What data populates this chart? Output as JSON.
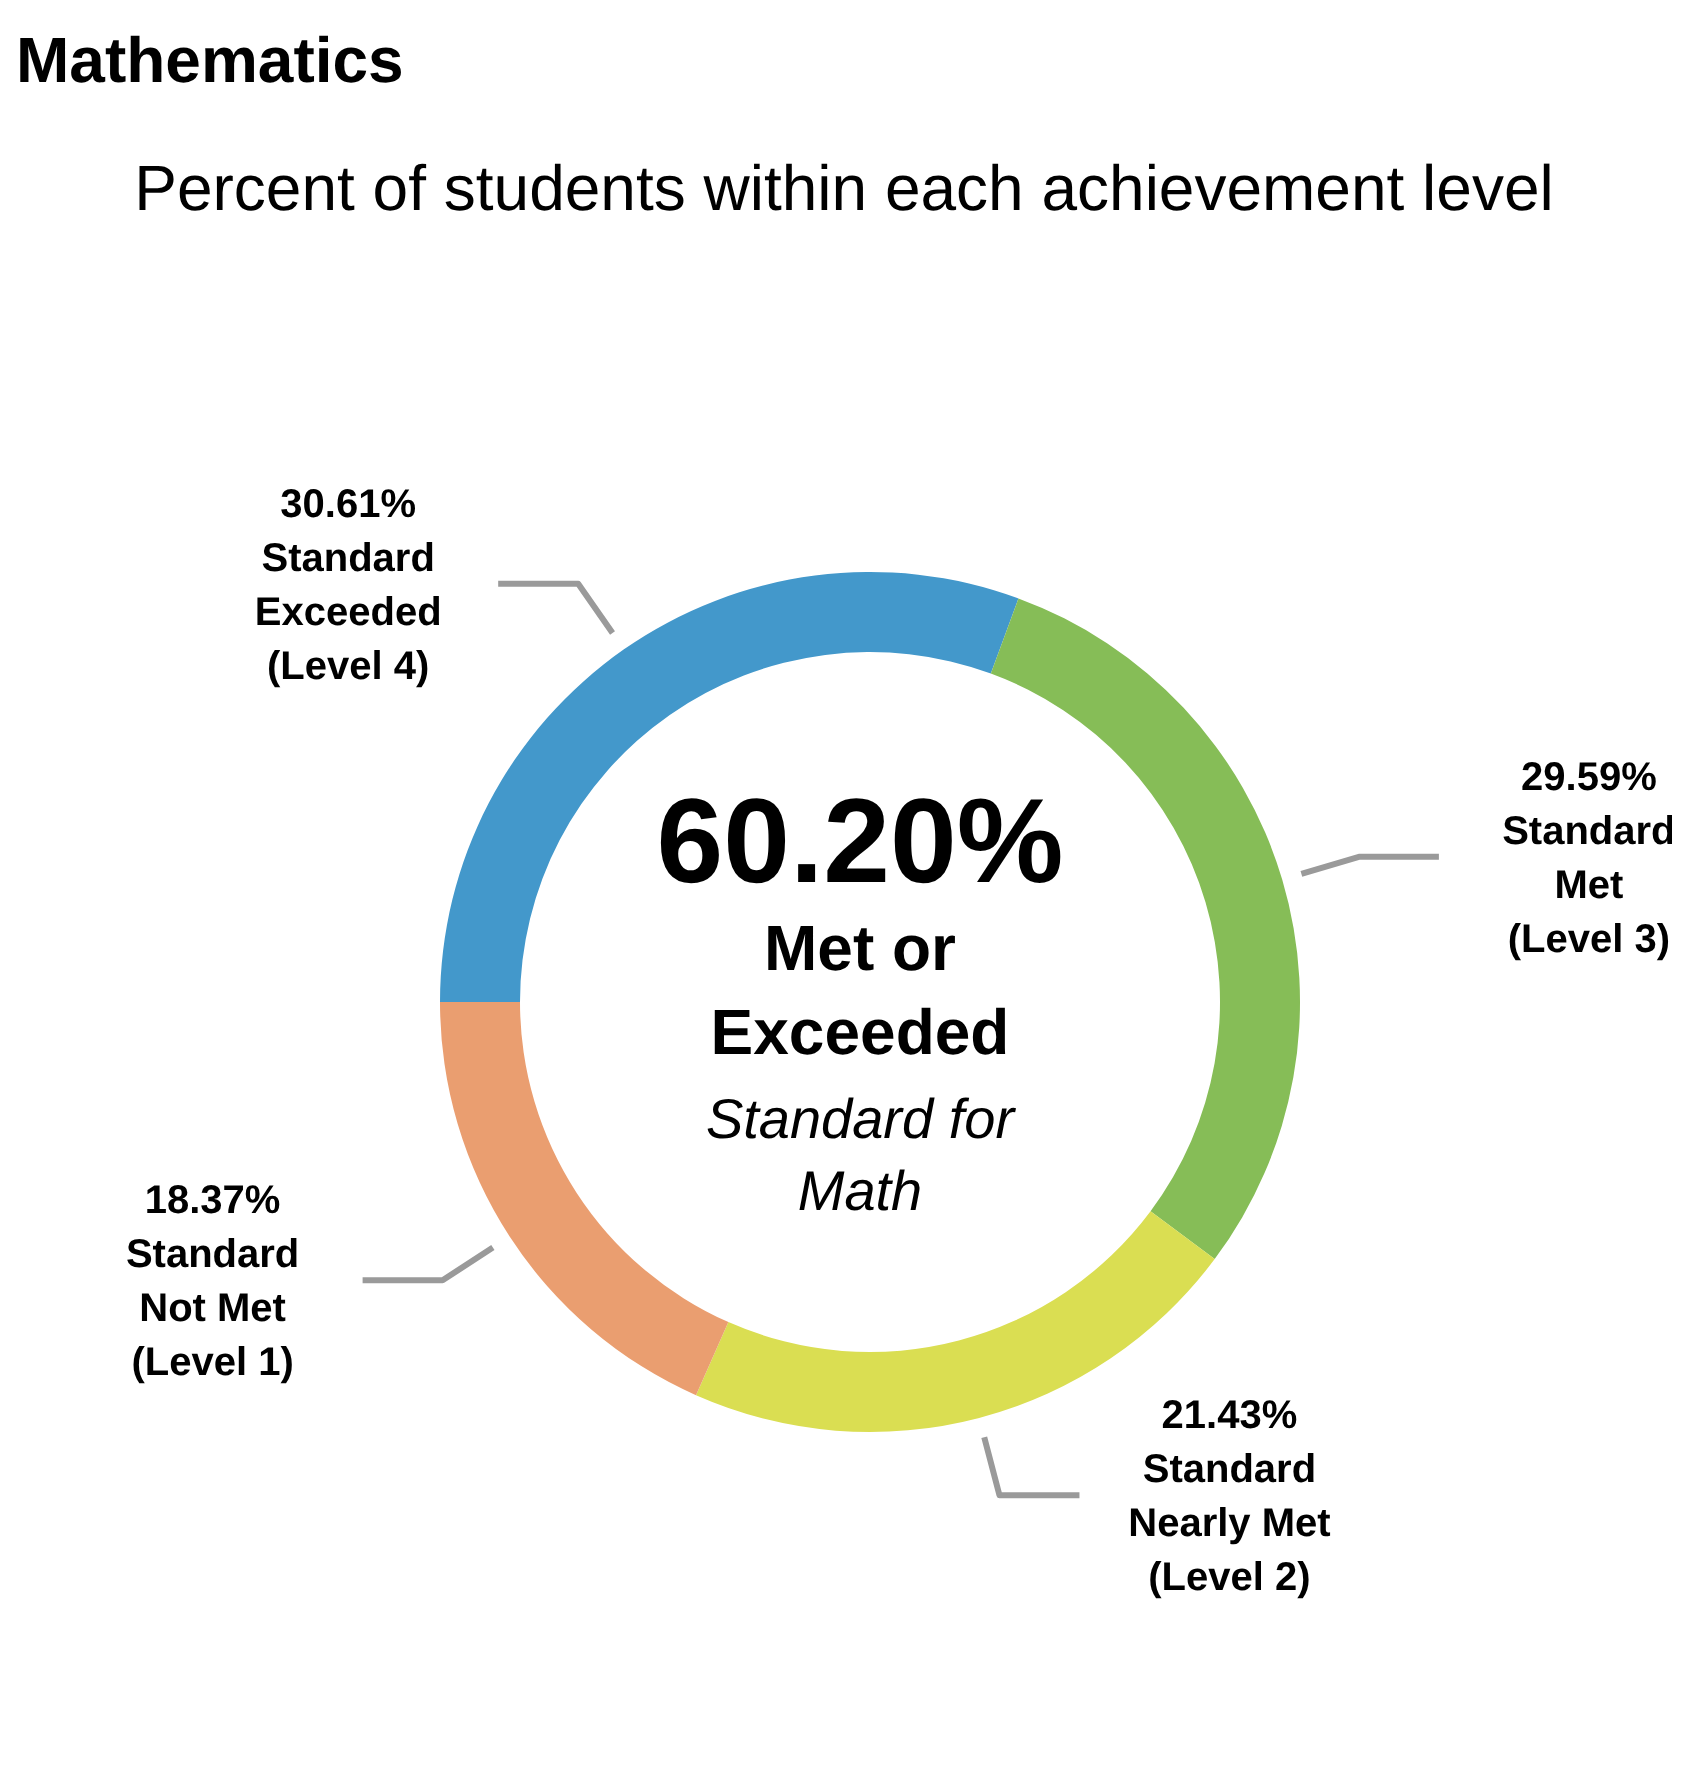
{
  "chart_data": {
    "type": "donut",
    "title": "Mathematics",
    "subtitle": "Percent of students within each achievement level",
    "categories": [
      "Standard Exceeded (Level 4)",
      "Standard Met (Level 3)",
      "Standard Nearly Met (Level 2)",
      "Standard Not Met (Level 1)"
    ],
    "values": [
      30.61,
      29.59,
      21.43,
      18.37
    ],
    "colors": [
      "#4398cb",
      "#86bd57",
      "#dade52",
      "#ea9e70"
    ],
    "value_labels": [
      "30.61%",
      "29.59%",
      "21.43%",
      "18.37%"
    ],
    "annotations": [
      "60.20%",
      "Met or Exceeded",
      "Standard for Math"
    ],
    "legend": false
  }
}
